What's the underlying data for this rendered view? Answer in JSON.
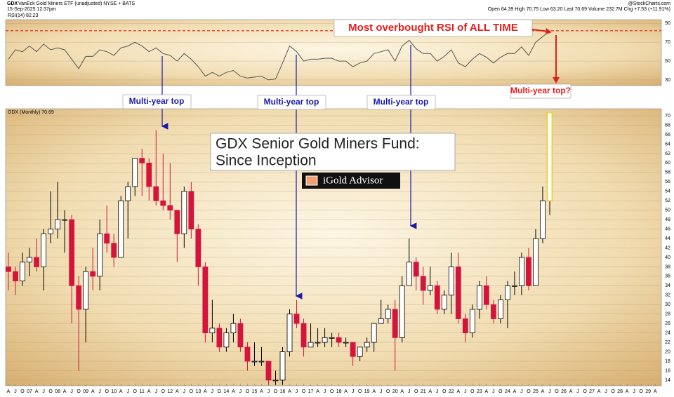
{
  "header": {
    "symbol": "GDX",
    "description": "VanEck Gold Miners ETF (unadjusted) NYSE + BATS",
    "date": "15-Sep-2025 12:37pm",
    "source": "@StockCharts.com",
    "quote": "Open 64.39 High 70.75 Low 63.20 Last 70.69 Volume 232.7M Chg +7.53 (+11.91%)"
  },
  "annotations": {
    "overbought": "Most overbought RSI of ALL TIME",
    "top_question": "Multi-year top?",
    "top_1": "Multi-year top",
    "top_2": "Multi-year top",
    "top_3": "Multi-year top",
    "title_line1": "GDX Senior Gold Miners Fund:",
    "title_line2": "Since Inception",
    "logo": "iGold Advisor"
  },
  "chart_data": [
    {
      "type": "line",
      "label": "RSI(14) 82.23",
      "color": "#555555",
      "x": [
        2006.25,
        2006.5,
        2006.75,
        2007,
        2007.25,
        2007.5,
        2007.75,
        2008,
        2008.25,
        2008.5,
        2008.75,
        2009,
        2009.25,
        2009.5,
        2009.75,
        2010,
        2010.25,
        2010.5,
        2010.75,
        2011,
        2011.25,
        2011.5,
        2011.75,
        2012,
        2012.25,
        2012.5,
        2012.75,
        2013,
        2013.25,
        2013.5,
        2013.75,
        2014,
        2014.25,
        2014.5,
        2014.75,
        2015,
        2015.25,
        2015.5,
        2015.75,
        2016,
        2016.25,
        2016.5,
        2016.75,
        2017,
        2017.25,
        2017.5,
        2017.75,
        2018,
        2018.25,
        2018.5,
        2018.75,
        2019,
        2019.25,
        2019.5,
        2019.75,
        2020,
        2020.25,
        2020.5,
        2020.75,
        2021,
        2021.25,
        2021.5,
        2021.75,
        2022,
        2022.25,
        2022.5,
        2022.75,
        2023,
        2023.25,
        2023.5,
        2023.75,
        2024,
        2024.25,
        2024.5,
        2024.75,
        2025,
        2025.25,
        2025.5
      ],
      "values": [
        52,
        62,
        60,
        66,
        60,
        68,
        62,
        64,
        62,
        52,
        42,
        55,
        55,
        62,
        60,
        56,
        64,
        66,
        70,
        66,
        60,
        64,
        58,
        56,
        50,
        58,
        52,
        44,
        34,
        38,
        34,
        38,
        40,
        34,
        32,
        33,
        34,
        30,
        31,
        48,
        66,
        60,
        50,
        52,
        52,
        53,
        53,
        50,
        50,
        44,
        48,
        50,
        58,
        60,
        62,
        50,
        66,
        72,
        63,
        58,
        58,
        50,
        55,
        62,
        48,
        44,
        52,
        58,
        54,
        48,
        54,
        58,
        58,
        65,
        56,
        70,
        76,
        82.23
      ],
      "xlim": [
        2006.15,
        2029.47
      ],
      "ylim": [
        24,
        94
      ],
      "yticks": [
        30,
        50,
        70,
        90
      ],
      "hline": 82.23,
      "hline_color": "#e0201c"
    },
    {
      "type": "candlestick",
      "label": "GDX (Monthly) 70.69",
      "up_color": "#ffffff",
      "down_color": "#d4143c",
      "outline_color": "#000000",
      "highlight_color": "#e8d44d",
      "x": [
        2006.25,
        2006.5,
        2006.75,
        2007,
        2007.25,
        2007.5,
        2007.75,
        2008,
        2008.25,
        2008.5,
        2008.75,
        2009,
        2009.25,
        2009.5,
        2009.75,
        2010,
        2010.25,
        2010.5,
        2010.75,
        2011,
        2011.25,
        2011.5,
        2011.75,
        2012,
        2012.25,
        2012.5,
        2012.75,
        2013,
        2013.25,
        2013.5,
        2013.75,
        2014,
        2014.25,
        2014.5,
        2014.75,
        2015,
        2015.25,
        2015.5,
        2015.75,
        2016,
        2016.25,
        2016.5,
        2016.75,
        2017,
        2017.25,
        2017.5,
        2017.75,
        2018,
        2018.25,
        2018.5,
        2018.75,
        2019,
        2019.25,
        2019.5,
        2019.75,
        2020,
        2020.25,
        2020.5,
        2020.75,
        2021,
        2021.25,
        2021.5,
        2021.75,
        2022,
        2022.25,
        2022.5,
        2022.75,
        2023,
        2023.25,
        2023.5,
        2023.75,
        2024,
        2024.25,
        2024.5,
        2024.75,
        2025,
        2025.25,
        2025.5
      ],
      "open": [
        38,
        37,
        35,
        39,
        40,
        38,
        45,
        46,
        48,
        48,
        34,
        29,
        37,
        36,
        45,
        43,
        40,
        52,
        55,
        61,
        60,
        55,
        52,
        51,
        50,
        45,
        54,
        46,
        38,
        24,
        25,
        21,
        24,
        26,
        21,
        18,
        18,
        18,
        14,
        14,
        20,
        28,
        26,
        21,
        22,
        22,
        23,
        23,
        22,
        22,
        19,
        21,
        22,
        26,
        27,
        29,
        23,
        34,
        39,
        36,
        33,
        34,
        29,
        32,
        38,
        27,
        24,
        29,
        34,
        30,
        27,
        31,
        34,
        34,
        40,
        34,
        44,
        52
      ],
      "high": [
        41,
        38,
        41,
        42,
        44,
        46,
        54,
        56,
        50,
        49,
        36,
        38,
        42,
        48,
        51,
        45,
        53,
        56,
        61,
        63,
        61,
        67,
        62,
        60,
        50,
        55,
        56,
        47,
        39,
        31,
        26,
        25,
        28,
        27,
        22,
        22,
        21,
        18,
        16,
        21,
        29,
        31,
        27,
        26,
        25,
        25,
        24,
        24,
        23,
        22,
        21,
        23,
        26,
        31,
        30,
        31,
        36,
        44,
        40,
        38,
        38,
        35,
        33,
        41,
        41,
        28,
        30,
        35,
        36,
        31,
        32,
        35,
        37,
        41,
        42,
        46,
        55,
        70.75
      ],
      "low": [
        33,
        32,
        34,
        36,
        37,
        33,
        43,
        44,
        41,
        26,
        16,
        22,
        33,
        33,
        41,
        38,
        40,
        44,
        53,
        53,
        52,
        51,
        50,
        48,
        39,
        42,
        44,
        34,
        22,
        22,
        20,
        20,
        22,
        20,
        16,
        17,
        17,
        13,
        13,
        13,
        19,
        25,
        19,
        21,
        21,
        21,
        21,
        21,
        21,
        17,
        18,
        20,
        20,
        26,
        26,
        16,
        22,
        34,
        33,
        30,
        32,
        28,
        28,
        28,
        26,
        22,
        23,
        27,
        29,
        26,
        26,
        25,
        32,
        32,
        33,
        34,
        43,
        49
      ],
      "close": [
        37,
        35,
        39,
        40,
        38,
        45,
        46,
        48,
        48,
        34,
        29,
        37,
        36,
        45,
        43,
        40,
        52,
        55,
        61,
        60,
        55,
        52,
        51,
        50,
        45,
        54,
        46,
        38,
        24,
        25,
        21,
        24,
        26,
        21,
        18,
        18,
        18,
        14,
        14,
        20,
        28,
        26,
        21,
        22,
        22,
        23,
        23,
        22,
        22,
        19,
        21,
        22,
        26,
        27,
        29,
        23,
        34,
        39,
        36,
        33,
        34,
        29,
        32,
        38,
        27,
        24,
        29,
        34,
        30,
        27,
        31,
        34,
        34,
        40,
        34,
        44,
        52,
        70.69
      ],
      "xlim": [
        2006.15,
        2029.47
      ],
      "ylim": [
        12.8,
        71.5
      ],
      "yticks": [
        14,
        16,
        18,
        20,
        22,
        24,
        26,
        28,
        30,
        32,
        34,
        36,
        38,
        40,
        42,
        44,
        46,
        48,
        50,
        52,
        54,
        56,
        58,
        60,
        62,
        64,
        66,
        68,
        70
      ],
      "xticks": [
        {
          "value": 2006.25,
          "label": "A"
        },
        {
          "value": 2006.5,
          "label": "J"
        },
        {
          "value": 2006.75,
          "label": "O"
        },
        {
          "value": 2007,
          "label": "07"
        },
        {
          "value": 2007.25,
          "label": "A"
        },
        {
          "value": 2007.5,
          "label": "J"
        },
        {
          "value": 2007.75,
          "label": "O"
        },
        {
          "value": 2008,
          "label": "08"
        },
        {
          "value": 2008.25,
          "label": "A"
        },
        {
          "value": 2008.5,
          "label": "J"
        },
        {
          "value": 2008.75,
          "label": "O"
        },
        {
          "value": 2009,
          "label": "09"
        },
        {
          "value": 2009.25,
          "label": "A"
        },
        {
          "value": 2009.5,
          "label": "J"
        },
        {
          "value": 2009.75,
          "label": "O"
        },
        {
          "value": 2010,
          "label": "10"
        },
        {
          "value": 2010.25,
          "label": "A"
        },
        {
          "value": 2010.5,
          "label": "J"
        },
        {
          "value": 2010.75,
          "label": "O"
        },
        {
          "value": 2011,
          "label": "11"
        },
        {
          "value": 2011.25,
          "label": "A"
        },
        {
          "value": 2011.5,
          "label": "J"
        },
        {
          "value": 2011.75,
          "label": "O"
        },
        {
          "value": 2012,
          "label": "12"
        },
        {
          "value": 2012.25,
          "label": "A"
        },
        {
          "value": 2012.5,
          "label": "J"
        },
        {
          "value": 2012.75,
          "label": "O"
        },
        {
          "value": 2013,
          "label": "13"
        },
        {
          "value": 2013.25,
          "label": "A"
        },
        {
          "value": 2013.5,
          "label": "J"
        },
        {
          "value": 2013.75,
          "label": "O"
        },
        {
          "value": 2014,
          "label": "14"
        },
        {
          "value": 2014.25,
          "label": "A"
        },
        {
          "value": 2014.5,
          "label": "J"
        },
        {
          "value": 2014.75,
          "label": "O"
        },
        {
          "value": 2015,
          "label": "15"
        },
        {
          "value": 2015.25,
          "label": "A"
        },
        {
          "value": 2015.5,
          "label": "J"
        },
        {
          "value": 2015.75,
          "label": "O"
        },
        {
          "value": 2016,
          "label": "16"
        },
        {
          "value": 2016.25,
          "label": "A"
        },
        {
          "value": 2016.5,
          "label": "J"
        },
        {
          "value": 2016.75,
          "label": "O"
        },
        {
          "value": 2017,
          "label": "17"
        },
        {
          "value": 2017.25,
          "label": "A"
        },
        {
          "value": 2017.5,
          "label": "J"
        },
        {
          "value": 2017.75,
          "label": "O"
        },
        {
          "value": 2018,
          "label": "18"
        },
        {
          "value": 2018.25,
          "label": "A"
        },
        {
          "value": 2018.5,
          "label": "J"
        },
        {
          "value": 2018.75,
          "label": "O"
        },
        {
          "value": 2019,
          "label": "19"
        },
        {
          "value": 2019.25,
          "label": "A"
        },
        {
          "value": 2019.5,
          "label": "J"
        },
        {
          "value": 2019.75,
          "label": "O"
        },
        {
          "value": 2020,
          "label": "20"
        },
        {
          "value": 2020.25,
          "label": "A"
        },
        {
          "value": 2020.5,
          "label": "J"
        },
        {
          "value": 2020.75,
          "label": "O"
        },
        {
          "value": 2021,
          "label": "21"
        },
        {
          "value": 2021.25,
          "label": "A"
        },
        {
          "value": 2021.5,
          "label": "J"
        },
        {
          "value": 2021.75,
          "label": "O"
        },
        {
          "value": 2022,
          "label": "22"
        },
        {
          "value": 2022.25,
          "label": "A"
        },
        {
          "value": 2022.5,
          "label": "J"
        },
        {
          "value": 2022.75,
          "label": "O"
        },
        {
          "value": 2023,
          "label": "23"
        },
        {
          "value": 2023.25,
          "label": "A"
        },
        {
          "value": 2023.5,
          "label": "J"
        },
        {
          "value": 2023.75,
          "label": "O"
        },
        {
          "value": 2024,
          "label": "24"
        },
        {
          "value": 2024.25,
          "label": "A"
        },
        {
          "value": 2024.5,
          "label": "J"
        },
        {
          "value": 2024.75,
          "label": "O"
        },
        {
          "value": 2025,
          "label": "25"
        },
        {
          "value": 2025.25,
          "label": "A"
        },
        {
          "value": 2025.5,
          "label": "J"
        },
        {
          "value": 2025.75,
          "label": "O"
        },
        {
          "value": 2026,
          "label": "26"
        },
        {
          "value": 2026.25,
          "label": "A"
        },
        {
          "value": 2026.5,
          "label": "J"
        },
        {
          "value": 2026.75,
          "label": "O"
        },
        {
          "value": 2027,
          "label": "27"
        },
        {
          "value": 2027.25,
          "label": "A"
        },
        {
          "value": 2027.5,
          "label": "J"
        },
        {
          "value": 2027.75,
          "label": "O"
        },
        {
          "value": 2028,
          "label": "28"
        },
        {
          "value": 2028.25,
          "label": "A"
        },
        {
          "value": 2028.5,
          "label": "J"
        },
        {
          "value": 2028.75,
          "label": "O"
        },
        {
          "value": 2029,
          "label": "29"
        },
        {
          "value": 2029.25,
          "label": "A"
        }
      ]
    }
  ]
}
